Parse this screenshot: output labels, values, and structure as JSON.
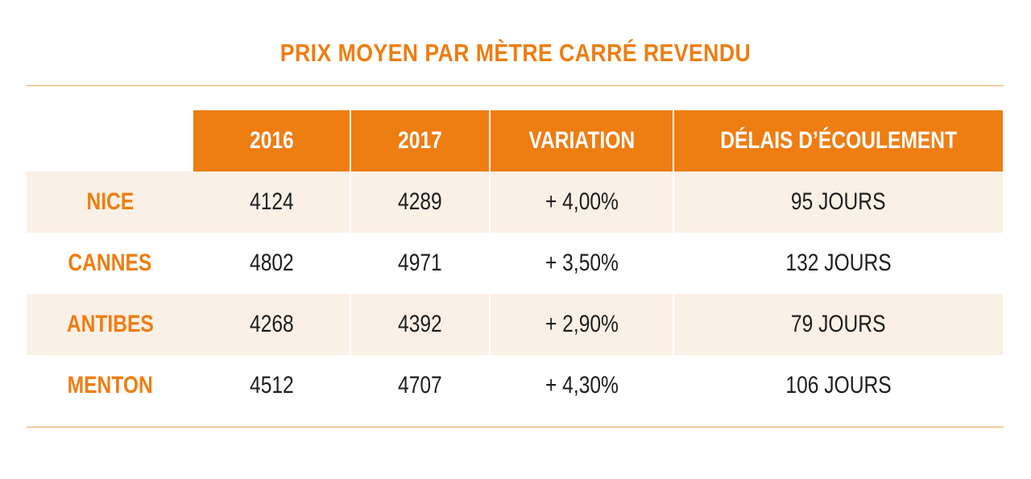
{
  "title": "PRIX MOYEN PAR MÈTRE CARRÉ REVENDU",
  "colors": {
    "accent": "#ee7d12",
    "row_shade": "#fbf0e6",
    "text": "#1e1e1e"
  },
  "chart_data": {
    "type": "table",
    "title": "PRIX MOYEN PAR MÈTRE CARRÉ REVENDU",
    "columns": [
      "2016",
      "2017",
      "VARIATION",
      "DÉLAIS D’ÉCOULEMENT"
    ],
    "rows": [
      {
        "city": "NICE",
        "y2016": "4124",
        "y2017": "4289",
        "variation": "+ 4,00%",
        "delais": "95 JOURS"
      },
      {
        "city": "CANNES",
        "y2016": "4802",
        "y2017": "4971",
        "variation": "+ 3,50%",
        "delais": "132 JOURS"
      },
      {
        "city": "ANTIBES",
        "y2016": "4268",
        "y2017": "4392",
        "variation": "+ 2,90%",
        "delais": "79 JOURS"
      },
      {
        "city": "MENTON",
        "y2016": "4512",
        "y2017": "4707",
        "variation": "+ 4,30%",
        "delais": "106 JOURS"
      }
    ]
  }
}
